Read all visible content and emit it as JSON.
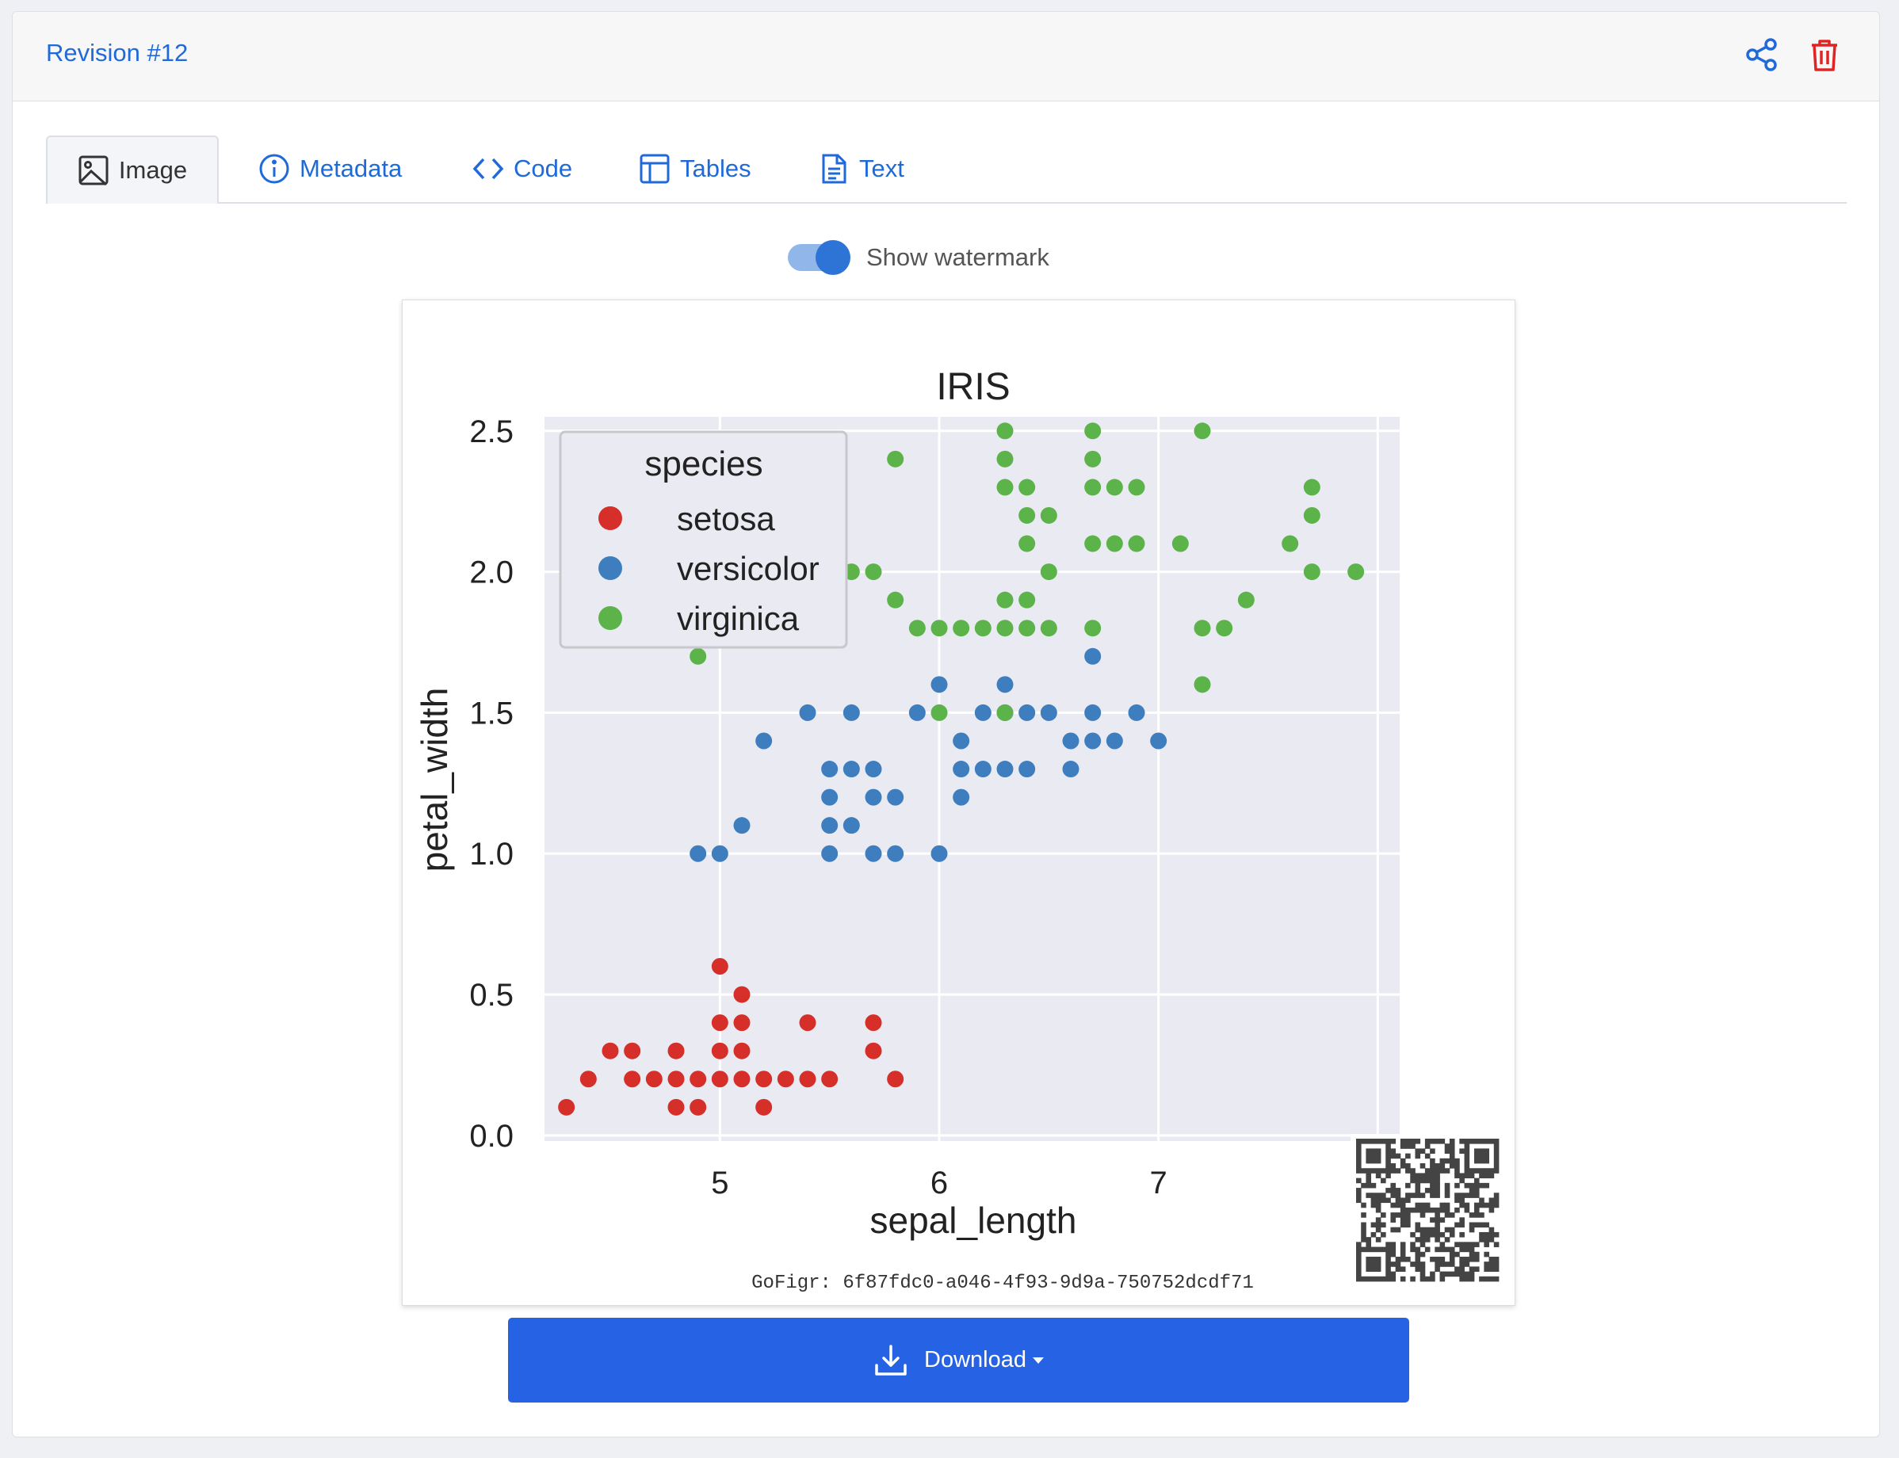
{
  "header": {
    "title": "Revision #12"
  },
  "tabs": [
    {
      "label": "Image",
      "icon": "image-icon"
    },
    {
      "label": "Metadata",
      "icon": "info-icon"
    },
    {
      "label": "Code",
      "icon": "code-icon"
    },
    {
      "label": "Tables",
      "icon": "table-icon"
    },
    {
      "label": "Text",
      "icon": "document-icon"
    }
  ],
  "watermark_toggle": {
    "label": "Show watermark",
    "on": true
  },
  "watermark": {
    "text": "GoFigr:  6f87fdc0-a046-4f93-9d9a-750752dcdf71"
  },
  "download": {
    "label": "Download"
  },
  "colors": {
    "accent": "#2563e4",
    "link": "#1f6ad8",
    "delete": "#e02424",
    "setosa": "#d62f2a",
    "versicolor": "#3e7ebf",
    "virginica": "#5bb34a",
    "plot_bg": "#eaeaf2"
  },
  "chart_data": {
    "type": "scatter",
    "title": "IRIS",
    "xlabel": "sepal_length",
    "ylabel": "petal_width",
    "xlim": [
      4.2,
      8.1
    ],
    "ylim": [
      -0.02,
      2.55
    ],
    "xticks": [
      5,
      6,
      7
    ],
    "xtick_labels": [
      "5",
      "6",
      "7"
    ],
    "yticks": [
      0.0,
      0.5,
      1.0,
      1.5,
      2.0,
      2.5
    ],
    "ytick_labels": [
      "0.0",
      "0.5",
      "1.0",
      "1.5",
      "2.0",
      "2.5"
    ],
    "grid": true,
    "legend": {
      "title": "species",
      "position": "top-left"
    },
    "series": [
      {
        "name": "setosa",
        "points": [
          [
            4.3,
            0.1
          ],
          [
            4.4,
            0.2
          ],
          [
            4.5,
            0.3
          ],
          [
            4.6,
            0.3
          ],
          [
            4.6,
            0.2
          ],
          [
            4.7,
            0.2
          ],
          [
            4.8,
            0.1
          ],
          [
            4.8,
            0.2
          ],
          [
            4.8,
            0.3
          ],
          [
            4.9,
            0.1
          ],
          [
            4.9,
            0.2
          ],
          [
            5.0,
            0.2
          ],
          [
            5.0,
            0.3
          ],
          [
            5.0,
            0.4
          ],
          [
            5.0,
            0.6
          ],
          [
            5.1,
            0.2
          ],
          [
            5.1,
            0.3
          ],
          [
            5.1,
            0.4
          ],
          [
            5.1,
            0.5
          ],
          [
            5.2,
            0.1
          ],
          [
            5.2,
            0.2
          ],
          [
            5.3,
            0.2
          ],
          [
            5.4,
            0.2
          ],
          [
            5.4,
            0.4
          ],
          [
            5.5,
            0.2
          ],
          [
            5.7,
            0.3
          ],
          [
            5.7,
            0.4
          ],
          [
            5.8,
            0.2
          ]
        ]
      },
      {
        "name": "versicolor",
        "points": [
          [
            4.9,
            1.0
          ],
          [
            5.0,
            1.0
          ],
          [
            5.1,
            1.1
          ],
          [
            5.2,
            1.4
          ],
          [
            5.4,
            1.5
          ],
          [
            5.5,
            1.0
          ],
          [
            5.5,
            1.1
          ],
          [
            5.5,
            1.2
          ],
          [
            5.5,
            1.3
          ],
          [
            5.6,
            1.1
          ],
          [
            5.6,
            1.3
          ],
          [
            5.6,
            1.5
          ],
          [
            5.7,
            1.0
          ],
          [
            5.7,
            1.2
          ],
          [
            5.7,
            1.3
          ],
          [
            5.8,
            1.0
          ],
          [
            5.8,
            1.2
          ],
          [
            5.9,
            1.5
          ],
          [
            6.0,
            1.0
          ],
          [
            6.0,
            1.6
          ],
          [
            6.1,
            1.2
          ],
          [
            6.1,
            1.3
          ],
          [
            6.1,
            1.4
          ],
          [
            6.2,
            1.3
          ],
          [
            6.2,
            1.5
          ],
          [
            6.3,
            1.3
          ],
          [
            6.3,
            1.5
          ],
          [
            6.3,
            1.6
          ],
          [
            6.4,
            1.3
          ],
          [
            6.4,
            1.5
          ],
          [
            6.5,
            1.5
          ],
          [
            6.6,
            1.3
          ],
          [
            6.6,
            1.4
          ],
          [
            6.7,
            1.4
          ],
          [
            6.7,
            1.5
          ],
          [
            6.7,
            1.7
          ],
          [
            6.8,
            1.4
          ],
          [
            6.9,
            1.5
          ],
          [
            7.0,
            1.4
          ]
        ]
      },
      {
        "name": "virginica",
        "points": [
          [
            4.9,
            1.7
          ],
          [
            5.6,
            2.0
          ],
          [
            5.7,
            2.0
          ],
          [
            5.8,
            1.9
          ],
          [
            5.8,
            2.4
          ],
          [
            5.9,
            1.8
          ],
          [
            6.0,
            1.5
          ],
          [
            6.0,
            1.8
          ],
          [
            6.1,
            1.8
          ],
          [
            6.2,
            1.8
          ],
          [
            6.3,
            1.5
          ],
          [
            6.3,
            1.8
          ],
          [
            6.3,
            1.9
          ],
          [
            6.3,
            2.3
          ],
          [
            6.3,
            2.4
          ],
          [
            6.3,
            2.5
          ],
          [
            6.4,
            1.8
          ],
          [
            6.4,
            1.9
          ],
          [
            6.4,
            2.1
          ],
          [
            6.4,
            2.2
          ],
          [
            6.4,
            2.3
          ],
          [
            6.5,
            1.8
          ],
          [
            6.5,
            2.0
          ],
          [
            6.5,
            2.2
          ],
          [
            6.7,
            1.8
          ],
          [
            6.7,
            2.1
          ],
          [
            6.7,
            2.3
          ],
          [
            6.7,
            2.4
          ],
          [
            6.7,
            2.5
          ],
          [
            6.8,
            2.1
          ],
          [
            6.8,
            2.3
          ],
          [
            6.9,
            2.1
          ],
          [
            6.9,
            2.3
          ],
          [
            7.1,
            2.1
          ],
          [
            7.2,
            1.6
          ],
          [
            7.2,
            1.8
          ],
          [
            7.2,
            2.5
          ],
          [
            7.3,
            1.8
          ],
          [
            7.4,
            1.9
          ],
          [
            7.6,
            2.1
          ],
          [
            7.7,
            2.0
          ],
          [
            7.7,
            2.2
          ],
          [
            7.7,
            2.3
          ],
          [
            7.9,
            2.0
          ]
        ]
      }
    ]
  }
}
